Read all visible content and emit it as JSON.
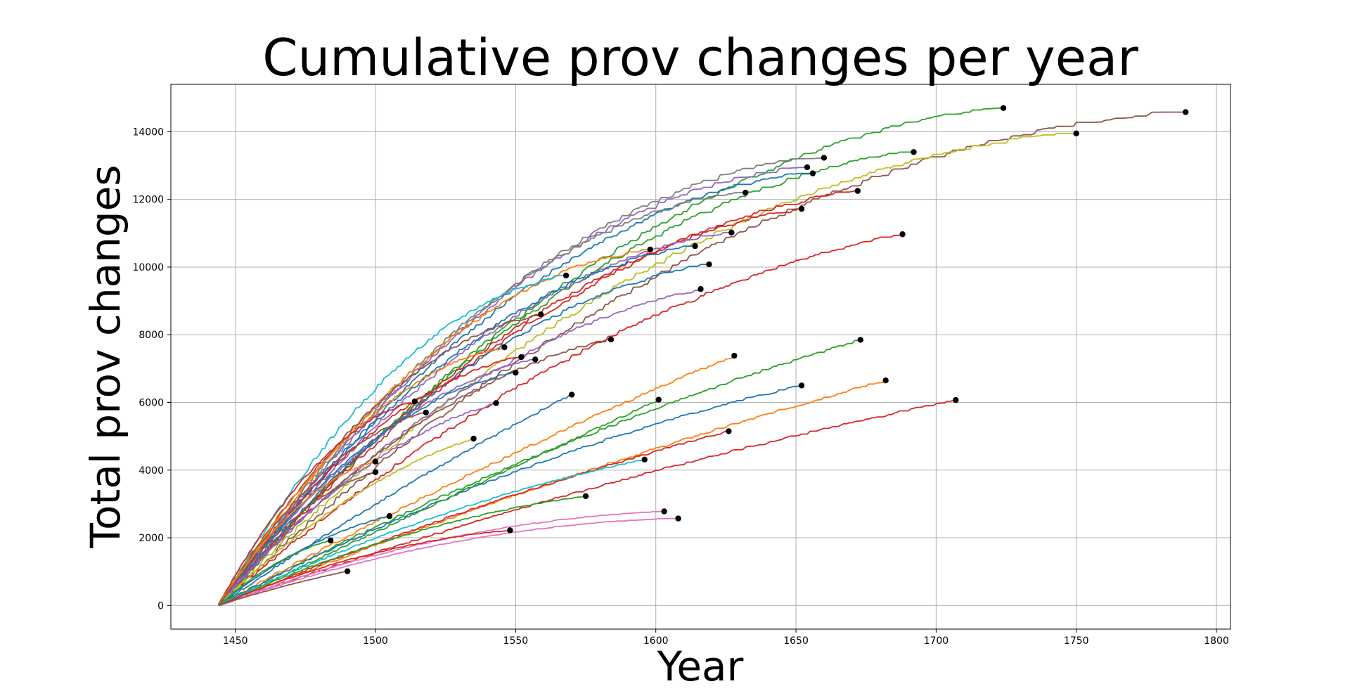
{
  "chart_data": {
    "type": "line",
    "title": "Cumulative prov changes per year",
    "xlabel": "Year",
    "ylabel": "Total prov changes",
    "xlim": [
      1427,
      1805
    ],
    "ylim": [
      -700,
      15400
    ],
    "xticks": [
      1450,
      1500,
      1550,
      1600,
      1650,
      1700,
      1750,
      1800
    ],
    "yticks": [
      0,
      2000,
      4000,
      6000,
      8000,
      10000,
      12000,
      14000
    ],
    "grid": true,
    "legend": "none",
    "start_year": 1444,
    "end_marker": "black dot at final point of each series",
    "series": [
      {
        "color": "#8c564b",
        "end": [
          1789,
          14580
        ],
        "curv": 0.48
      },
      {
        "color": "#2ca02c",
        "end": [
          1724,
          14700
        ],
        "curv": 0.46
      },
      {
        "color": "#bcbd22",
        "end": [
          1750,
          13950
        ],
        "curv": 0.47
      },
      {
        "color": "#2ca02c",
        "end": [
          1692,
          13400
        ],
        "curv": 0.44
      },
      {
        "color": "#7f7f7f",
        "end": [
          1660,
          13230
        ],
        "curv": 0.5
      },
      {
        "color": "#9467bd",
        "end": [
          1654,
          12950
        ],
        "curv": 0.49
      },
      {
        "color": "#1f77b4",
        "end": [
          1656,
          12770
        ],
        "curv": 0.48
      },
      {
        "color": "#d62728",
        "end": [
          1672,
          12250
        ],
        "curv": 0.43
      },
      {
        "color": "#7f7f7f",
        "end": [
          1632,
          12200
        ],
        "curv": 0.48
      },
      {
        "color": "#d62728",
        "end": [
          1652,
          11720
        ],
        "curv": 0.42
      },
      {
        "color": "#9467bd",
        "end": [
          1627,
          11020
        ],
        "curv": 0.45
      },
      {
        "color": "#d62728",
        "end": [
          1688,
          10970
        ],
        "curv": 0.34
      },
      {
        "color": "#1f77b4",
        "end": [
          1614,
          10620
        ],
        "curv": 0.45
      },
      {
        "color": "#ff7f0e",
        "end": [
          1598,
          10520
        ],
        "curv": 0.47
      },
      {
        "color": "#1f77b4",
        "end": [
          1619,
          10080
        ],
        "curv": 0.42
      },
      {
        "color": "#17becf",
        "end": [
          1568,
          9750
        ],
        "curv": 0.46
      },
      {
        "color": "#9467bd",
        "end": [
          1616,
          9350
        ],
        "curv": 0.38
      },
      {
        "color": "#8c564b",
        "end": [
          1559,
          8600
        ],
        "curv": 0.44
      },
      {
        "color": "#8c564b",
        "end": [
          1584,
          7860
        ],
        "curv": 0.38
      },
      {
        "color": "#2ca02c",
        "end": [
          1673,
          7850
        ],
        "curv": 0.15
      },
      {
        "color": "#ff7f0e",
        "end": [
          1546,
          7630
        ],
        "curv": 0.44
      },
      {
        "color": "#ff7f0e",
        "end": [
          1628,
          7380
        ],
        "curv": 0.08
      },
      {
        "color": "#d62728",
        "end": [
          1552,
          7340
        ],
        "curv": 0.42
      },
      {
        "color": "#9467bd",
        "end": [
          1557,
          7270
        ],
        "curv": 0.4
      },
      {
        "color": "#1f77b4",
        "end": [
          1550,
          6880
        ],
        "curv": 0.42
      },
      {
        "color": "#ff7f0e",
        "end": [
          1682,
          6650
        ],
        "curv": 0.1
      },
      {
        "color": "#1f77b4",
        "end": [
          1652,
          6500
        ],
        "curv": 0.22
      },
      {
        "color": "#1f77b4",
        "end": [
          1570,
          6230
        ],
        "curv": 0.08
      },
      {
        "color": "#2ca02c",
        "end": [
          1601,
          6080
        ],
        "curv": 0.0
      },
      {
        "color": "#d62728",
        "end": [
          1707,
          6070
        ],
        "curv": 0.14
      },
      {
        "color": "#d62728",
        "end": [
          1514,
          6030
        ],
        "curv": 0.42
      },
      {
        "color": "#9467bd",
        "end": [
          1543,
          5980
        ],
        "curv": 0.34
      },
      {
        "color": "#8c564b",
        "end": [
          1518,
          5700
        ],
        "curv": 0.4
      },
      {
        "color": "#d62728",
        "end": [
          1626,
          5150
        ],
        "curv": 0.12
      },
      {
        "color": "#bcbd22",
        "end": [
          1535,
          4930
        ],
        "curv": 0.28
      },
      {
        "color": "#17becf",
        "end": [
          1596,
          4310
        ],
        "curv": 0.22
      },
      {
        "color": "#ff7f0e",
        "end": [
          1500,
          4250
        ],
        "curv": 0.4
      },
      {
        "color": "#8c564b",
        "end": [
          1500,
          3940
        ],
        "curv": 0.38
      },
      {
        "color": "#2ca02c",
        "end": [
          1575,
          3230
        ],
        "curv": 0.3
      },
      {
        "color": "#e377c2",
        "end": [
          1603,
          2780
        ],
        "curv": 0.44
      },
      {
        "color": "#1f77b4",
        "end": [
          1505,
          2640
        ],
        "curv": 0.3
      },
      {
        "color": "#e377c2",
        "end": [
          1608,
          2570
        ],
        "curv": 0.48
      },
      {
        "color": "#d62728",
        "end": [
          1548,
          2220
        ],
        "curv": 0.36
      },
      {
        "color": "#2ca02c",
        "end": [
          1484,
          1920
        ],
        "curv": 0.3
      },
      {
        "color": "#8c564b",
        "end": [
          1490,
          1010
        ],
        "curv": 0.12
      }
    ]
  }
}
